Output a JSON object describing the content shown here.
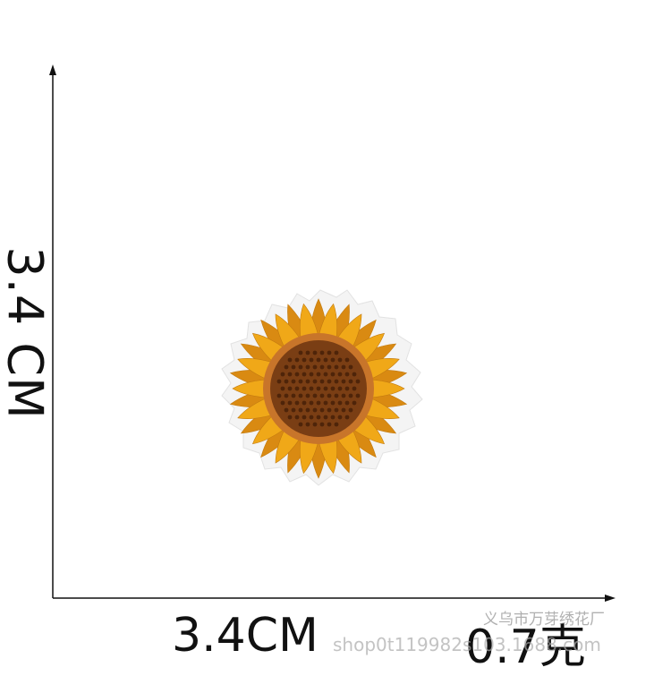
{
  "dimensions": {
    "height_label": "3.4 CM",
    "width_label": "3.4CM",
    "weight_label": "0.7克"
  },
  "watermark": {
    "supplier": "义乌市万芽绣花厂",
    "url": "shop0t119982s103.1688.com"
  },
  "product": {
    "icon": "sunflower-embroidered-patch",
    "colors": {
      "petal": "#f0a818",
      "petal_dark": "#d98a12",
      "center": "#7a3e14",
      "center_ring": "#b5651d",
      "backing": "#f4f4f4"
    }
  }
}
